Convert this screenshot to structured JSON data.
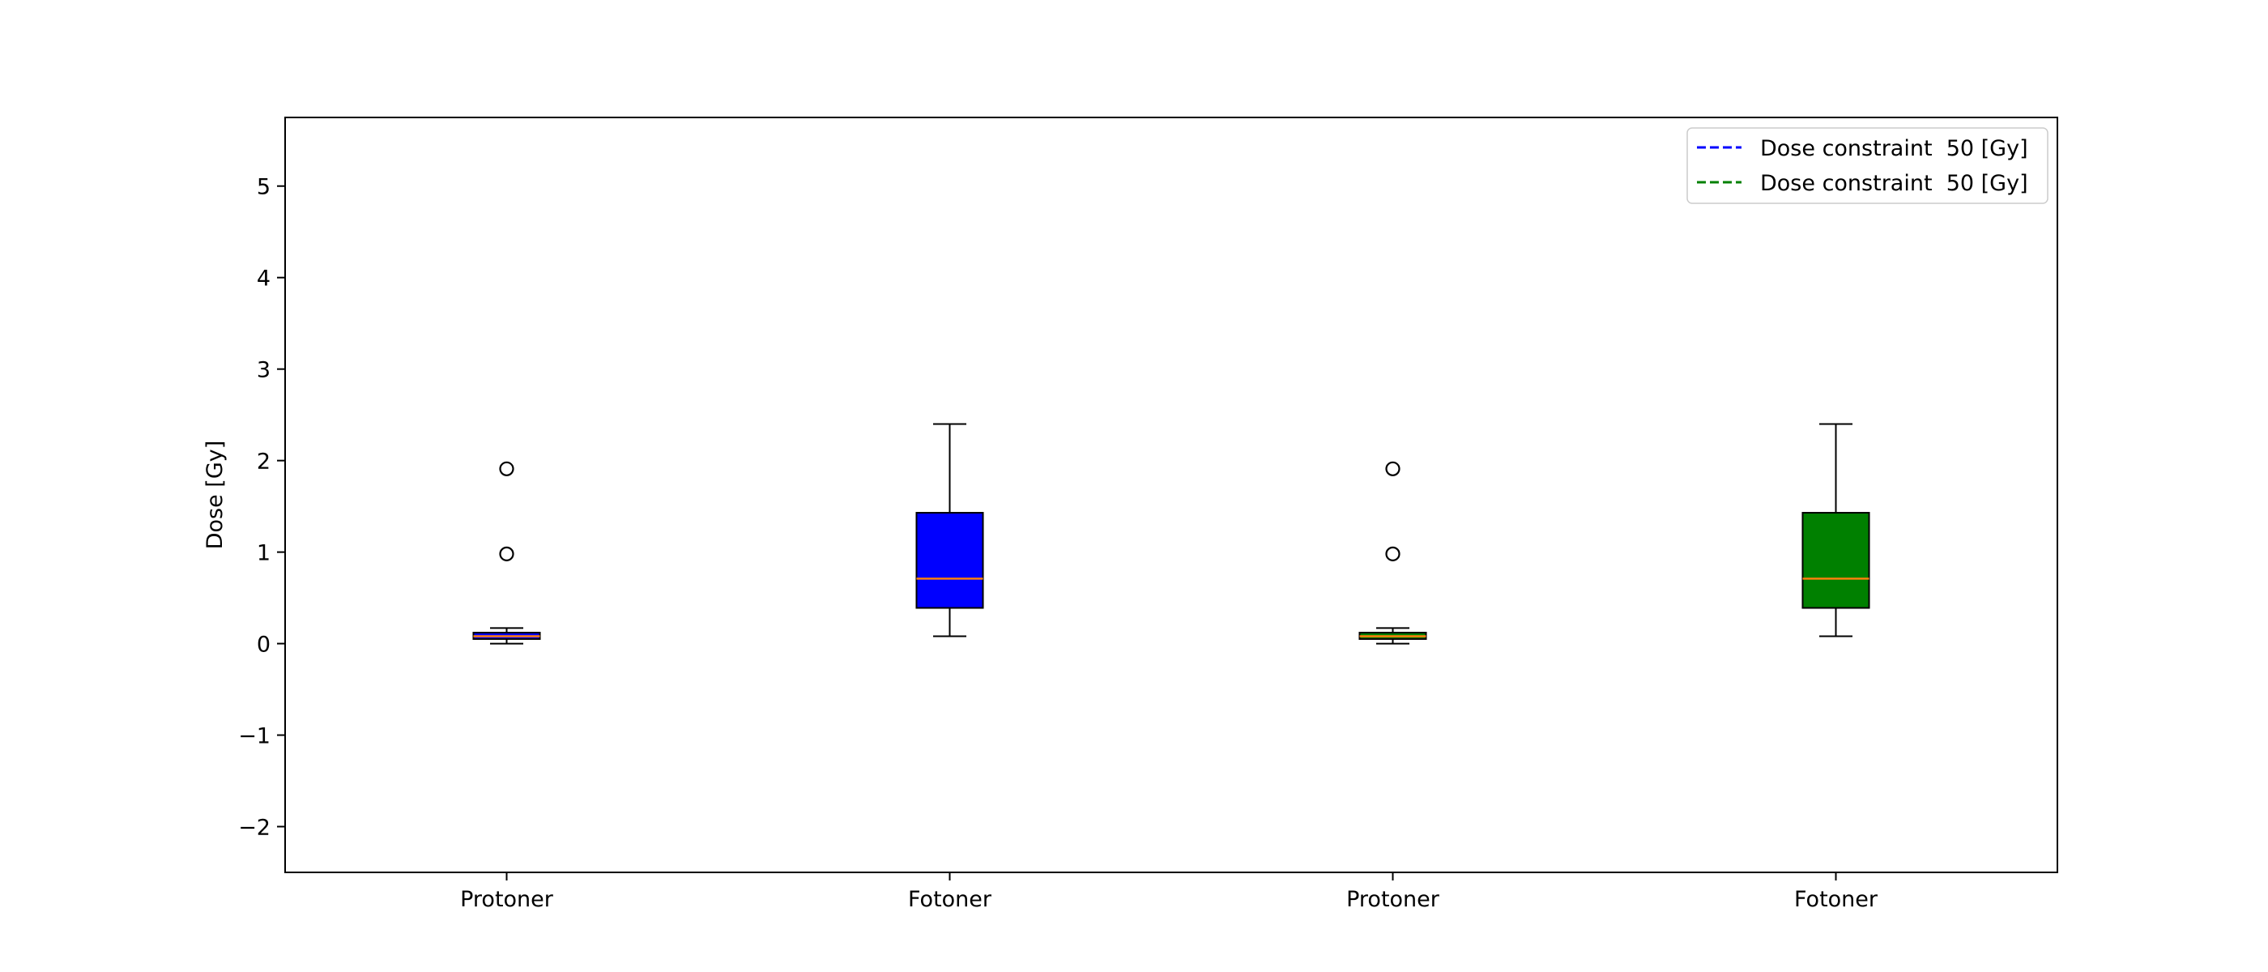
{
  "chart_data": {
    "type": "box",
    "title": "",
    "xlabel": "",
    "ylabel": "Dose [Gy]",
    "ylim": [
      -2.5,
      5.75
    ],
    "yticks": [
      -2,
      -1,
      0,
      1,
      2,
      3,
      4,
      5
    ],
    "ytick_labels": [
      "−2",
      "−1",
      "0",
      "1",
      "2",
      "3",
      "4",
      "5"
    ],
    "grid": false,
    "legend_position": "top-right",
    "categories": [
      "Protoner",
      "Fotoner",
      "Protoner",
      "Fotoner"
    ],
    "boxes": [
      {
        "label": "Protoner",
        "q1": 0.05,
        "median": 0.08,
        "q3": 0.12,
        "whisker_low": 0.0,
        "whisker_high": 0.17,
        "outliers": [
          0.98,
          1.91
        ],
        "fill": "#0000ff",
        "median_color": "#ff7f0e"
      },
      {
        "label": "Fotoner",
        "q1": 0.39,
        "median": 0.71,
        "q3": 1.43,
        "whisker_low": 0.08,
        "whisker_high": 2.4,
        "outliers": [],
        "fill": "#0000ff",
        "median_color": "#ff7f0e"
      },
      {
        "label": "Protoner",
        "q1": 0.05,
        "median": 0.08,
        "q3": 0.12,
        "whisker_low": 0.0,
        "whisker_high": 0.17,
        "outliers": [
          0.98,
          1.91
        ],
        "fill": "#008000",
        "median_color": "#ff7f0e"
      },
      {
        "label": "Fotoner",
        "q1": 0.39,
        "median": 0.71,
        "q3": 1.43,
        "whisker_low": 0.08,
        "whisker_high": 2.4,
        "outliers": [],
        "fill": "#008000",
        "median_color": "#ff7f0e"
      }
    ],
    "legend": [
      {
        "label": "Dose constraint  50 [Gy]",
        "color": "#0000ff",
        "style": "dashed"
      },
      {
        "label": "Dose constraint  50 [Gy]",
        "color": "#008000",
        "style": "dashed"
      }
    ]
  }
}
